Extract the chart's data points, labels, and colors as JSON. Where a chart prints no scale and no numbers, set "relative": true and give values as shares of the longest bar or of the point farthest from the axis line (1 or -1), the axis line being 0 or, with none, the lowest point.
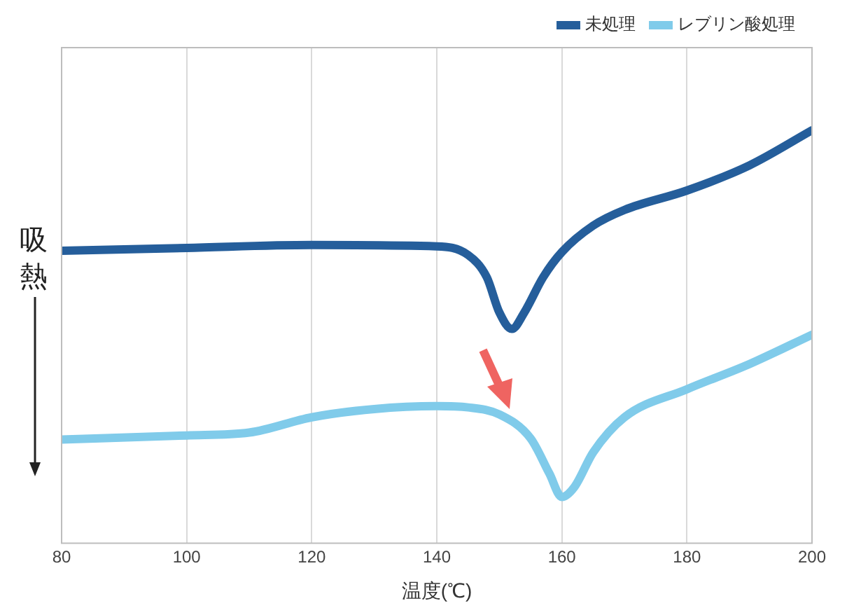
{
  "chart_data": {
    "type": "line",
    "relative": true,
    "xlabel": "温度(℃)",
    "ylabel": "吸熱",
    "xlim": [
      80,
      200
    ],
    "xticks": [
      80,
      100,
      120,
      140,
      160,
      180,
      200
    ],
    "grid": "x",
    "legend": "top right",
    "marker": "none",
    "series": [
      {
        "name": "未処理",
        "color": "#255e9b",
        "x": [
          80,
          100,
          120,
          140,
          145,
          148,
          150,
          152,
          154,
          157,
          160,
          165,
          170,
          180,
          190,
          200
        ],
        "values": [
          0.708,
          0.715,
          0.722,
          0.719,
          0.698,
          0.644,
          0.559,
          0.519,
          0.559,
          0.644,
          0.705,
          0.769,
          0.807,
          0.854,
          0.915,
          1
        ]
      },
      {
        "name": "レブリン酸処理",
        "color": "#80cbea",
        "x": [
          80,
          100,
          110,
          120,
          130,
          140,
          145,
          150,
          155,
          158,
          160,
          162,
          165,
          170,
          180,
          190,
          200
        ],
        "values": [
          0.251,
          0.261,
          0.268,
          0.305,
          0.325,
          0.332,
          0.329,
          0.312,
          0.254,
          0.169,
          0.112,
          0.136,
          0.22,
          0.305,
          0.373,
          0.434,
          0.505
        ]
      }
    ]
  }
}
